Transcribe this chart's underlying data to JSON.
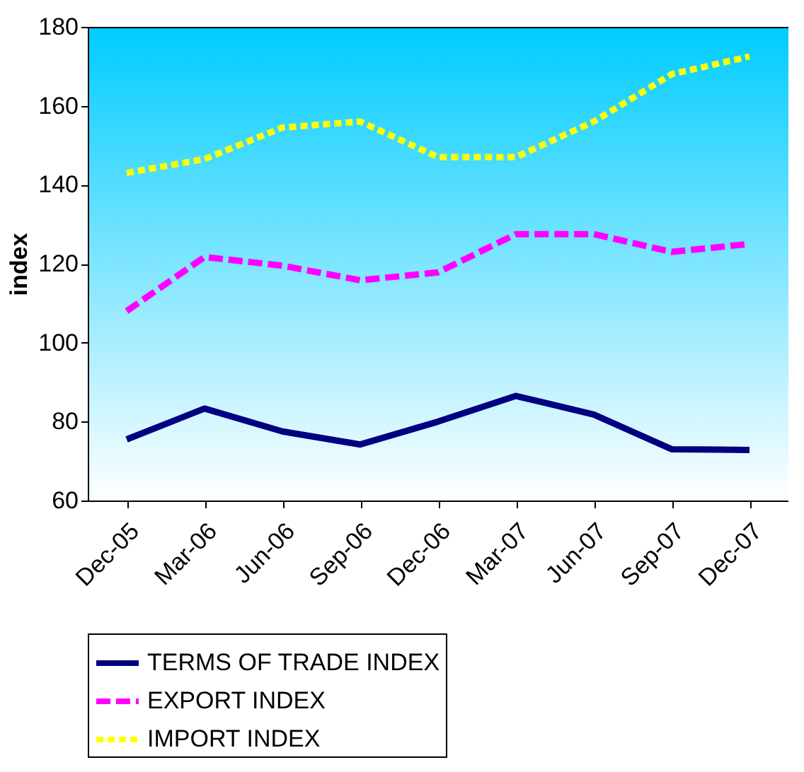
{
  "chart_data": {
    "type": "line",
    "ylabel": "index",
    "categories": [
      "Dec-05",
      "Mar-06",
      "Jun-06",
      "Sep-06",
      "Dec-06",
      "Mar-07",
      "Jun-07",
      "Sep-07",
      "Dec-07"
    ],
    "ylim": [
      60,
      180
    ],
    "yticks": [
      60,
      80,
      100,
      120,
      140,
      160,
      180
    ],
    "grid": false,
    "legend": "bottom",
    "series": [
      {
        "name": "TERMS OF TRADE INDEX",
        "color": "#000080",
        "line_style": "solid",
        "values": [
          75.5,
          83.3,
          77.5,
          74.2,
          80,
          86.5,
          81.8,
          73,
          72.8
        ]
      },
      {
        "name": "EXPORT INDEX",
        "color": "#ff00ff",
        "line_style": "dashed",
        "values": [
          108,
          121.7,
          119.5,
          115.8,
          117.8,
          127.5,
          127.5,
          123,
          125
        ]
      },
      {
        "name": "IMPORT INDEX",
        "color": "#ffff00",
        "line_style": "dotted",
        "values": [
          143,
          146.5,
          154.5,
          156,
          147,
          147,
          156,
          168,
          172.5
        ]
      }
    ]
  }
}
